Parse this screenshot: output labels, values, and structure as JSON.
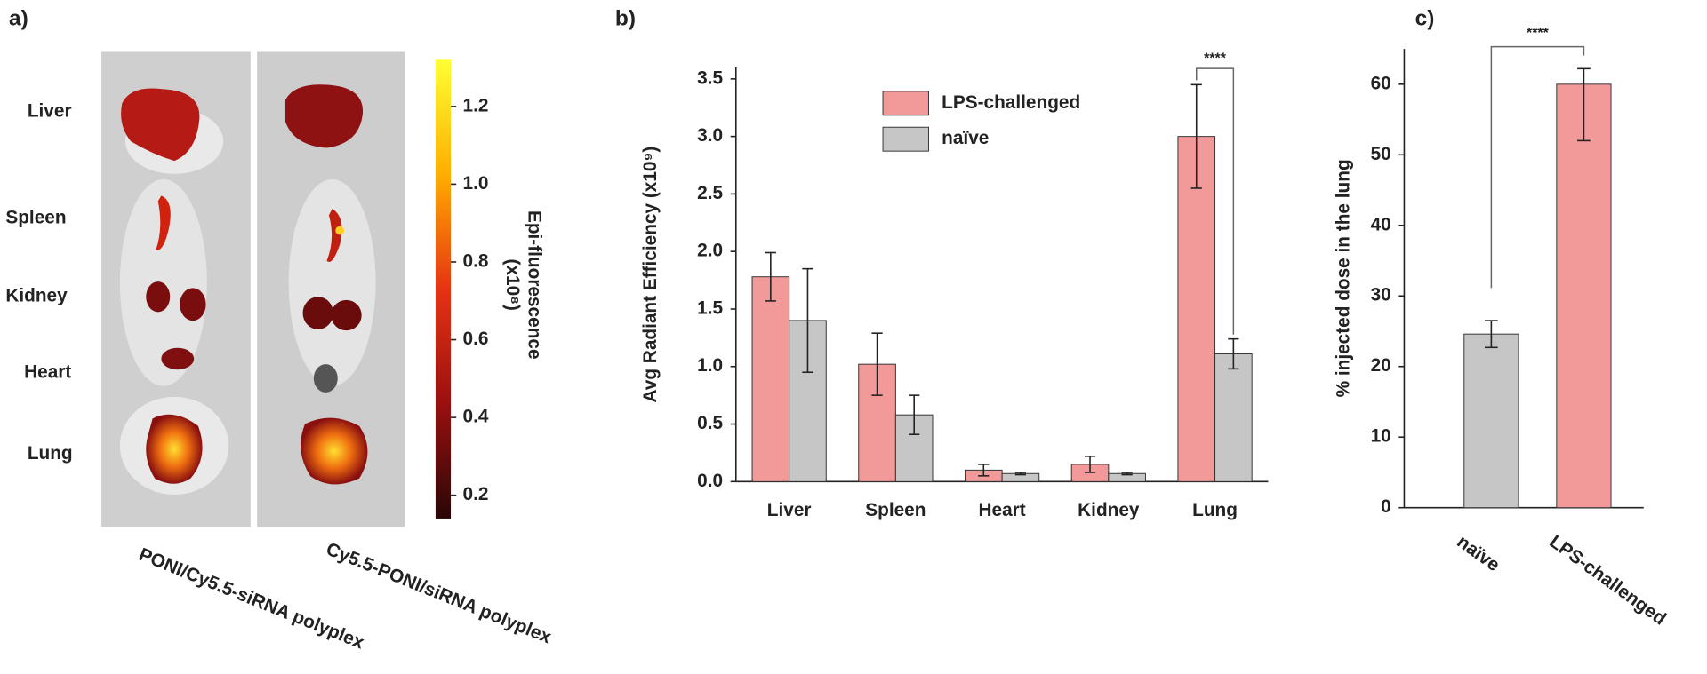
{
  "image_panel": {
    "panel_label": "a)",
    "organs": [
      "Liver",
      "Spleen",
      "Kidney",
      "Heart",
      "Lung"
    ],
    "captions": [
      "PONI/Cy5.5-siRNA polyplex",
      "Cy5.5-PONI/siRNA polyplex"
    ],
    "colorbar": {
      "label": "Epi-fluorescence",
      "unit": "(x10⁸)",
      "lim": [
        0.14,
        1.32
      ],
      "ticks": [
        0.2,
        0.4,
        0.6,
        0.8,
        {
          "value": 1,
          "label": "1.0"
        },
        1.2
      ]
    }
  },
  "chart_data": [
    {
      "type": "grouped_bar",
      "panel_label": "b)",
      "ylabel": "Avg Radiant Efficiency (x10⁹)",
      "categories": [
        "Liver",
        "Spleen",
        "Heart",
        "Kidney",
        "Lung"
      ],
      "series": [
        {
          "name": "LPS-challenged",
          "color": "#f29a9a",
          "values": [
            1.78,
            1.02,
            0.1,
            0.15,
            3.0
          ],
          "errors": [
            0.21,
            0.27,
            0.05,
            0.07,
            0.45
          ]
        },
        {
          "name": "naïve",
          "color": "#c6c6c6",
          "values": [
            1.4,
            0.58,
            0.07,
            0.07,
            1.11
          ],
          "errors": [
            0.45,
            0.17,
            0.01,
            0.01,
            0.13
          ]
        }
      ],
      "ylim": [
        0,
        3.6
      ],
      "yticks": [
        {
          "value": 0,
          "label": "0.0"
        },
        0.5,
        {
          "value": 1,
          "label": "1.0"
        },
        1.5,
        {
          "value": 2,
          "label": "2.0"
        },
        2.5,
        {
          "value": 3,
          "label": "3.0"
        },
        3.5
      ],
      "significance": "****"
    },
    {
      "type": "bar",
      "panel_label": "c)",
      "ylabel": "% injected dose in the lung",
      "categories": [
        "naïve",
        "LPS-challenged"
      ],
      "colors": [
        "#c6c6c6",
        "#f29a9a"
      ],
      "values": [
        24.6,
        60
      ],
      "error_minus": [
        1.9,
        8
      ],
      "error_plus": [
        1.9,
        2.2
      ],
      "ylim": [
        0,
        65
      ],
      "yticks": [
        0,
        10,
        20,
        30,
        40,
        50,
        60
      ],
      "significance": "****"
    }
  ]
}
